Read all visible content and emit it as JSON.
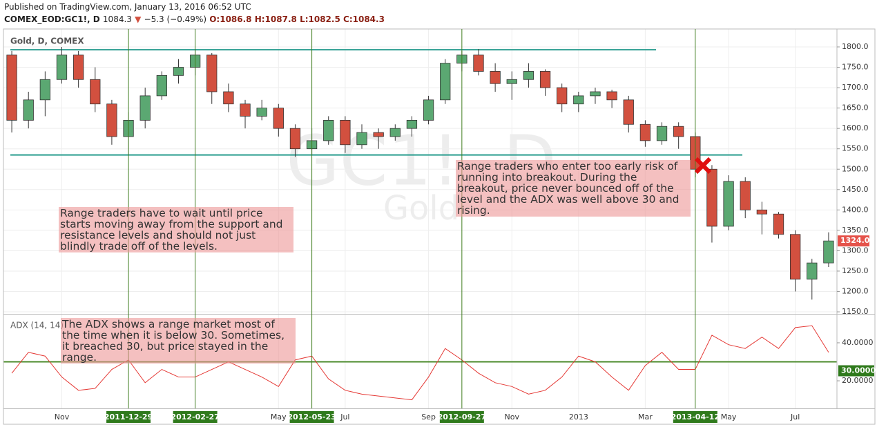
{
  "header": {
    "published": "Published on TradingView.com, January 13, 2016 06:52 UTC",
    "symbol": "COMEX_EOD:GC1!, D",
    "last": "1084.3",
    "arrow": "▼",
    "change": "−5.3 (−0.49%)",
    "ohlc": [
      "O:1086.8",
      "H:1087.8",
      "L:1082.5",
      "C:1084.3"
    ]
  },
  "chart_data": [
    {
      "type": "candlestick",
      "title": "Gold, D, COMEX",
      "watermark": [
        "GC1!, D",
        "Gold"
      ],
      "categories": [
        null,
        null,
        null,
        "Nov",
        null,
        null,
        null,
        "2011-12-29",
        null,
        null,
        null,
        "2012-02-27",
        null,
        null,
        null,
        null,
        "May",
        null,
        "2012-05-23",
        null,
        "Jul",
        null,
        null,
        null,
        null,
        "Sep",
        null,
        "2012-09-27",
        null,
        null,
        "Nov",
        null,
        null,
        null,
        "2013",
        null,
        null,
        null,
        "Mar",
        null,
        null,
        "2013-04-12",
        null,
        "May",
        null,
        null,
        null,
        "Jul",
        null,
        null
      ],
      "open": [
        1780,
        1620,
        1670,
        1720,
        1780,
        1720,
        1660,
        1580,
        1620,
        1680,
        1730,
        1750,
        1780,
        1690,
        1660,
        1630,
        1650,
        1600,
        1550,
        1570,
        1620,
        1560,
        1590,
        1580,
        1600,
        1620,
        1670,
        1760,
        1780,
        1740,
        1710,
        1720,
        1740,
        1700,
        1660,
        1680,
        1690,
        1670,
        1610,
        1570,
        1605,
        1580,
        1500,
        1360,
        1470,
        1400,
        1390,
        1340,
        1230,
        1270
      ],
      "high": [
        1790,
        1690,
        1740,
        1800,
        1790,
        1750,
        1670,
        1640,
        1700,
        1740,
        1770,
        1795,
        1785,
        1710,
        1670,
        1670,
        1660,
        1610,
        1600,
        1630,
        1630,
        1610,
        1600,
        1610,
        1630,
        1680,
        1770,
        1790,
        1795,
        1760,
        1740,
        1760,
        1745,
        1710,
        1690,
        1700,
        1695,
        1680,
        1620,
        1615,
        1615,
        1590,
        1510,
        1485,
        1480,
        1420,
        1395,
        1350,
        1280,
        1345
      ],
      "low": [
        1590,
        1600,
        1630,
        1710,
        1700,
        1640,
        1560,
        1535,
        1600,
        1670,
        1710,
        1730,
        1660,
        1640,
        1600,
        1620,
        1580,
        1530,
        1535,
        1560,
        1540,
        1550,
        1550,
        1570,
        1580,
        1610,
        1660,
        1740,
        1730,
        1690,
        1670,
        1700,
        1680,
        1640,
        1640,
        1660,
        1650,
        1590,
        1555,
        1560,
        1550,
        1480,
        1320,
        1350,
        1380,
        1340,
        1330,
        1200,
        1180,
        1260
      ],
      "close": [
        1620,
        1670,
        1720,
        1780,
        1720,
        1660,
        1580,
        1620,
        1680,
        1730,
        1750,
        1780,
        1690,
        1660,
        1630,
        1650,
        1600,
        1550,
        1570,
        1620,
        1560,
        1590,
        1580,
        1600,
        1620,
        1670,
        1760,
        1780,
        1740,
        1710,
        1720,
        1740,
        1700,
        1660,
        1680,
        1690,
        1670,
        1610,
        1570,
        1605,
        1580,
        1500,
        1360,
        1470,
        1400,
        1390,
        1340,
        1230,
        1270,
        1324
      ],
      "up_color": "#5ba872",
      "down_color": "#d2503f",
      "levels": [
        1793,
        1535
      ],
      "level_color": "#2a9d8f",
      "last_label": {
        "value": 1324,
        "label": "1324.0"
      },
      "ylim": [
        1145,
        1844
      ],
      "yticks": [
        {
          "value": 1150,
          "label": "1150.0"
        },
        {
          "value": 1200,
          "label": "1200.0"
        },
        {
          "value": 1250,
          "label": "1250.0"
        },
        {
          "value": 1300,
          "label": "1300.0"
        },
        {
          "value": 1350,
          "label": "1350.0"
        },
        {
          "value": 1400,
          "label": "1400.0"
        },
        {
          "value": 1450,
          "label": "1450.0"
        },
        {
          "value": 1500,
          "label": "1500.0"
        },
        {
          "value": 1550,
          "label": "1550.0"
        },
        {
          "value": 1600,
          "label": "1600.0"
        },
        {
          "value": 1650,
          "label": "1650.0"
        },
        {
          "value": 1700,
          "label": "1700.0"
        },
        {
          "value": 1750,
          "label": "1750.0"
        },
        {
          "value": 1800,
          "label": "1800.0"
        }
      ],
      "grid": true,
      "annotations": [
        "Range traders have to wait until price starts moving away from the support and resistance levels and should not just blindly trade off of the levels.",
        "Range traders who enter too early risk of running into breakout. During the breakout, price never bounced off of the level and the ADX was well above 30 and rising."
      ]
    },
    {
      "type": "line",
      "title": "ADX (14, 14)",
      "color": "#e53935",
      "values": [
        24,
        35,
        33,
        22,
        15,
        16,
        26,
        31,
        19,
        26,
        22,
        22,
        26,
        30,
        26,
        22,
        17,
        31,
        33,
        21,
        15,
        13,
        12,
        11,
        10,
        22,
        37,
        31,
        24,
        19,
        17,
        13,
        15,
        22,
        33,
        30,
        22,
        15,
        28,
        35,
        26,
        26,
        44,
        39,
        37,
        43,
        37,
        48,
        49,
        35
      ],
      "threshold": {
        "value": 30,
        "label": "30.0000"
      },
      "threshold_color": "#4a8a2a",
      "ylim": [
        5.5,
        54.5
      ],
      "yticks": [
        {
          "value": 20,
          "label": "20.0000"
        },
        {
          "value": 40,
          "label": "40.0000"
        }
      ],
      "annotations": [
        "The ADX shows a range market most of the time when it is below 30. Sometimes, it breached 30, but price stayed in the range."
      ]
    }
  ]
}
